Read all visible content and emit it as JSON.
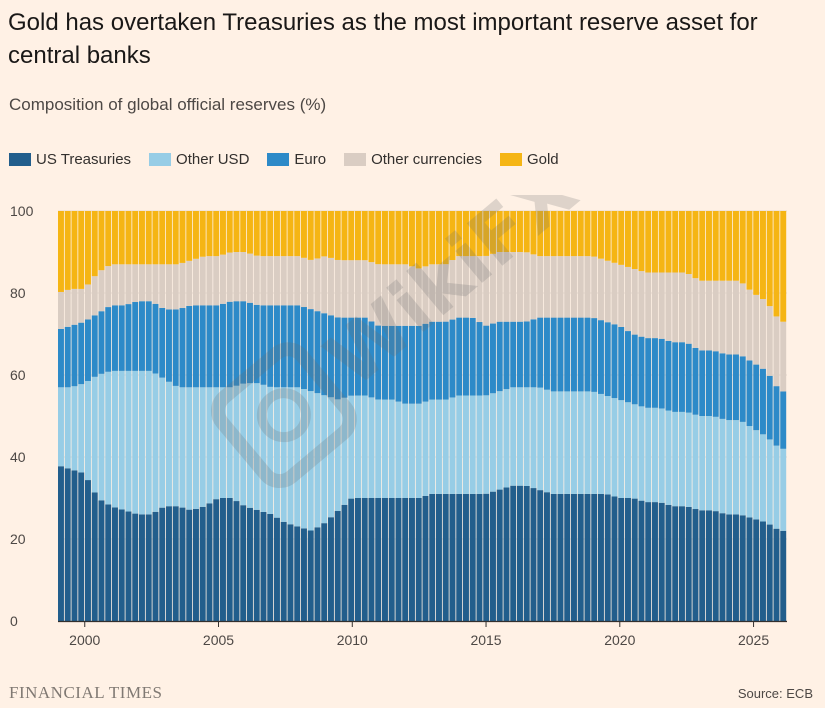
{
  "header": {
    "title": "Gold has overtaken Treasuries as the most important reserve asset for central banks",
    "subtitle": "Composition of global official reserves (%)"
  },
  "footer": {
    "brand": "FINANCIAL TIMES",
    "source": "Source: ECB"
  },
  "watermark": {
    "text": "WikiFX",
    "icon": "wikifx-logo-icon"
  },
  "chart_data": {
    "type": "bar",
    "stacked": true,
    "xlabel": "",
    "ylabel": "",
    "ylim": [
      0,
      100
    ],
    "yticks": [
      0,
      20,
      40,
      60,
      80,
      100
    ],
    "xlim": [
      1999.0,
      2026.25
    ],
    "xticks": [
      2000,
      2005,
      2010,
      2015,
      2020,
      2025
    ],
    "grid": true,
    "legend_position": "top-left",
    "colors": {
      "US Treasuries": "#225e8c",
      "Other USD": "#97cde6",
      "Euro": "#2d8ac8",
      "Other currencies": "#dacdc3",
      "Gold": "#f5b514"
    },
    "series": [
      {
        "name": "US Treasuries",
        "keys": [
          1999.0,
          1999.5,
          2000.0,
          2000.5,
          2001.0,
          2001.5,
          2002.0,
          2002.5,
          2003.0,
          2003.5,
          2004.0,
          2004.5,
          2005.0,
          2005.5,
          2006.0,
          2006.5,
          2007.0,
          2007.5,
          2008.0,
          2008.5,
          2009.0,
          2009.5,
          2010.0,
          2010.5,
          2011.0,
          2011.5,
          2012.0,
          2012.5,
          2013.0,
          2013.5,
          2014.0,
          2014.5,
          2015.0,
          2015.5,
          2016.0,
          2016.5,
          2017.0,
          2017.5,
          2018.0,
          2018.5,
          2019.0,
          2019.5,
          2020.0,
          2020.5,
          2021.0,
          2021.5,
          2022.0,
          2022.5,
          2023.0,
          2023.5,
          2024.0,
          2024.5,
          2025.0,
          2025.5,
          2026.0
        ],
        "values": [
          38,
          37,
          36,
          30,
          28,
          27,
          26,
          26,
          28,
          28,
          27,
          28,
          30,
          30,
          28,
          27,
          26,
          24,
          23,
          22,
          24,
          27,
          30,
          30,
          30,
          30,
          30,
          30,
          31,
          31,
          31,
          31,
          31,
          32,
          33,
          33,
          32,
          31,
          31,
          31,
          31,
          31,
          30,
          30,
          29,
          29,
          28,
          28,
          27,
          27,
          26,
          26,
          25,
          24,
          22
        ]
      },
      {
        "name": "Other USD",
        "keys": [
          1999.0,
          1999.5,
          2000.0,
          2000.5,
          2001.0,
          2001.5,
          2002.0,
          2002.5,
          2003.0,
          2003.5,
          2004.0,
          2004.5,
          2005.0,
          2005.5,
          2006.0,
          2006.5,
          2007.0,
          2007.5,
          2008.0,
          2008.5,
          2009.0,
          2009.5,
          2010.0,
          2010.5,
          2011.0,
          2011.5,
          2012.0,
          2012.5,
          2013.0,
          2013.5,
          2014.0,
          2014.5,
          2015.0,
          2015.5,
          2016.0,
          2016.5,
          2017.0,
          2017.5,
          2018.0,
          2018.5,
          2019.0,
          2019.5,
          2020.0,
          2020.5,
          2021.0,
          2021.5,
          2022.0,
          2022.5,
          2023.0,
          2023.5,
          2024.0,
          2024.5,
          2025.0,
          2025.5,
          2026.0
        ],
        "values": [
          19,
          20,
          22,
          30,
          33,
          34,
          35,
          35,
          31,
          29,
          30,
          29,
          27,
          27,
          30,
          31,
          31,
          33,
          34,
          34,
          31,
          27,
          25,
          25,
          24,
          24,
          23,
          23,
          23,
          23,
          24,
          24,
          24,
          24,
          24,
          24,
          25,
          25,
          25,
          25,
          25,
          24,
          24,
          23,
          23,
          23,
          23,
          23,
          23,
          23,
          23,
          23,
          22,
          21,
          20
        ]
      },
      {
        "name": "Euro",
        "keys": [
          1999.0,
          1999.5,
          2000.0,
          2000.5,
          2001.0,
          2001.5,
          2002.0,
          2002.5,
          2003.0,
          2003.5,
          2004.0,
          2004.5,
          2005.0,
          2005.5,
          2006.0,
          2006.5,
          2007.0,
          2007.5,
          2008.0,
          2008.5,
          2009.0,
          2009.5,
          2010.0,
          2010.5,
          2011.0,
          2011.5,
          2012.0,
          2012.5,
          2013.0,
          2013.5,
          2014.0,
          2014.5,
          2015.0,
          2015.5,
          2016.0,
          2016.5,
          2017.0,
          2017.5,
          2018.0,
          2018.5,
          2019.0,
          2019.5,
          2020.0,
          2020.5,
          2021.0,
          2021.5,
          2022.0,
          2022.5,
          2023.0,
          2023.5,
          2024.0,
          2024.5,
          2025.0,
          2025.5,
          2026.0
        ],
        "values": [
          14,
          15,
          15,
          15,
          16,
          16,
          17,
          17,
          17,
          19,
          20,
          20,
          20,
          21,
          20,
          19,
          20,
          20,
          20,
          20,
          20,
          20,
          19,
          19,
          18,
          18,
          19,
          19,
          19,
          19,
          19,
          19,
          17,
          17,
          16,
          16,
          17,
          18,
          18,
          18,
          18,
          18,
          18,
          17,
          17,
          17,
          17,
          17,
          16,
          16,
          16,
          16,
          16,
          16,
          14
        ]
      },
      {
        "name": "Other currencies",
        "keys": [
          1999.0,
          1999.5,
          2000.0,
          2000.5,
          2001.0,
          2001.5,
          2002.0,
          2002.5,
          2003.0,
          2003.5,
          2004.0,
          2004.5,
          2005.0,
          2005.5,
          2006.0,
          2006.5,
          2007.0,
          2007.5,
          2008.0,
          2008.5,
          2009.0,
          2009.5,
          2010.0,
          2010.5,
          2011.0,
          2011.5,
          2012.0,
          2012.5,
          2013.0,
          2013.5,
          2014.0,
          2014.5,
          2015.0,
          2015.5,
          2016.0,
          2016.5,
          2017.0,
          2017.5,
          2018.0,
          2018.5,
          2019.0,
          2019.5,
          2020.0,
          2020.5,
          2021.0,
          2021.5,
          2022.0,
          2022.5,
          2023.0,
          2023.5,
          2024.0,
          2024.5,
          2025.0,
          2025.5,
          2026.0
        ],
        "values": [
          9,
          9,
          8,
          10,
          10,
          10,
          9,
          9,
          11,
          11,
          11,
          12,
          12,
          12,
          12,
          12,
          12,
          12,
          12,
          12,
          14,
          14,
          14,
          14,
          15,
          15,
          15,
          14,
          14,
          14,
          15,
          15,
          17,
          17,
          17,
          17,
          15,
          15,
          15,
          15,
          15,
          15,
          15,
          16,
          16,
          16,
          17,
          17,
          17,
          17,
          18,
          18,
          17,
          17,
          17
        ]
      },
      {
        "name": "Gold",
        "keys": [
          1999.0,
          1999.5,
          2000.0,
          2000.5,
          2001.0,
          2001.5,
          2002.0,
          2002.5,
          2003.0,
          2003.5,
          2004.0,
          2004.5,
          2005.0,
          2005.5,
          2006.0,
          2006.5,
          2007.0,
          2007.5,
          2008.0,
          2008.5,
          2009.0,
          2009.5,
          2010.0,
          2010.5,
          2011.0,
          2011.5,
          2012.0,
          2012.5,
          2013.0,
          2013.5,
          2014.0,
          2014.5,
          2015.0,
          2015.5,
          2016.0,
          2016.5,
          2017.0,
          2017.5,
          2018.0,
          2018.5,
          2019.0,
          2019.5,
          2020.0,
          2020.5,
          2021.0,
          2021.5,
          2022.0,
          2022.5,
          2023.0,
          2023.5,
          2024.0,
          2024.5,
          2025.0,
          2025.5,
          2026.0
        ],
        "values": [
          20,
          19,
          19,
          15,
          13,
          13,
          13,
          13,
          13,
          13,
          12,
          11,
          11,
          10,
          10,
          11,
          11,
          11,
          11,
          12,
          11,
          12,
          12,
          12,
          13,
          13,
          13,
          14,
          13,
          13,
          11,
          11,
          11,
          10,
          10,
          10,
          11,
          11,
          11,
          11,
          11,
          12,
          13,
          14,
          15,
          15,
          15,
          15,
          17,
          17,
          17,
          17,
          20,
          22,
          27
        ]
      }
    ]
  }
}
